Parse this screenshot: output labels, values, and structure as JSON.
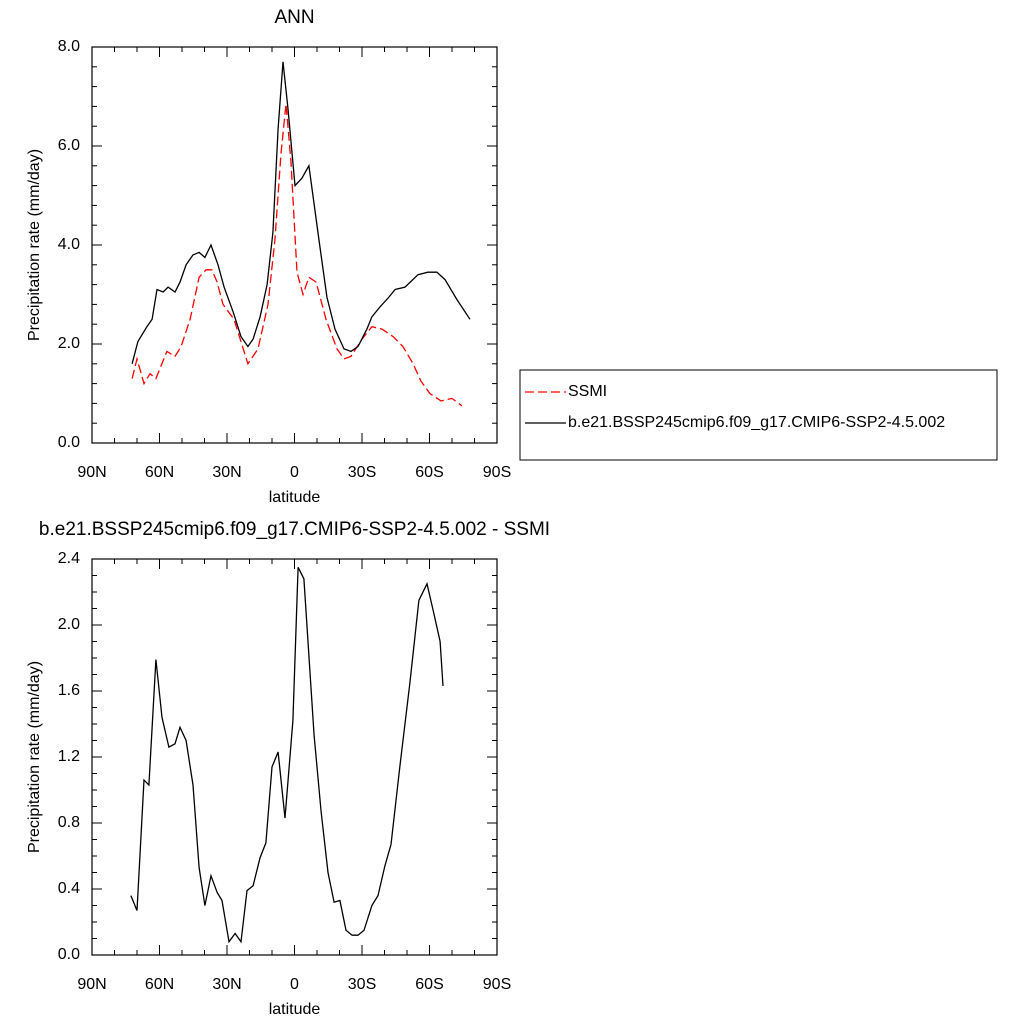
{
  "chart_data": [
    {
      "type": "line",
      "title": "ANN",
      "xlabel": "latitude",
      "ylabel": "Precipitation rate (mm/day)",
      "xlim": [
        90,
        -90
      ],
      "ylim": [
        0,
        8
      ],
      "xticks": [
        {
          "value": 90,
          "label": "90N"
        },
        {
          "value": 60,
          "label": "60N"
        },
        {
          "value": 30,
          "label": "30N"
        },
        0,
        {
          "value": -30,
          "label": "30S"
        },
        {
          "value": -60,
          "label": "60S"
        },
        {
          "value": -90,
          "label": "90S"
        }
      ],
      "yticks": [
        {
          "value": 0,
          "label": "0.0"
        },
        {
          "value": 2,
          "label": "2.0"
        },
        {
          "value": 4,
          "label": "4.0"
        },
        {
          "value": 6,
          "label": "6.0"
        },
        {
          "value": 8,
          "label": "8.0"
        }
      ],
      "legend": "right",
      "series": [
        {
          "name": "SSMI",
          "color": "#ff0000",
          "line_style": "dashed",
          "x": [
            72.2,
            70,
            66.9,
            64.2,
            61.6,
            56.7,
            53.1,
            50.4,
            46.4,
            42.4,
            39.3,
            36.7,
            34.4,
            31.8,
            26.9,
            20.7,
            16.2,
            11.8,
            8.7,
            6,
            3.8,
            1.6,
            -1.1,
            -3.8,
            -6.4,
            -9.6,
            -14,
            -18.9,
            -22,
            -25.1,
            -30,
            -34.4,
            -38.9,
            -43.8,
            -48.2,
            -52.7,
            -56.2,
            -60.2,
            -65.1,
            -70,
            -74.4
          ],
          "values": [
            1.3,
            1.7,
            1.2,
            1.4,
            1.3,
            1.85,
            1.75,
            1.95,
            2.5,
            3.35,
            3.5,
            3.5,
            3.25,
            2.8,
            2.5,
            1.6,
            1.9,
            2.8,
            4.1,
            5.85,
            6.85,
            5.7,
            3.45,
            3.0,
            3.35,
            3.25,
            2.5,
            1.9,
            1.7,
            1.75,
            2.1,
            2.35,
            2.3,
            2.15,
            1.95,
            1.6,
            1.25,
            1.0,
            0.85,
            0.9,
            0.75
          ]
        },
        {
          "name": "b.e21.BSSP245cmip6.f09_g17.CMIP6-SSP2-4.5.002",
          "color": "#000000",
          "line_style": "solid",
          "x": [
            72.2,
            69.6,
            65.6,
            63.3,
            61.1,
            58.4,
            56.2,
            53.1,
            50.9,
            48.2,
            45.1,
            42.4,
            39.8,
            37.1,
            34,
            31.3,
            27.3,
            23.8,
            20.7,
            18.4,
            15.3,
            12.2,
            9.6,
            7.3,
            5.1,
            2.9,
            -0.2,
            -3.3,
            -6.4,
            -10.9,
            -14.4,
            -18,
            -22,
            -25.1,
            -28.2,
            -32.2,
            -34.4,
            -38,
            -42,
            -44.7,
            -49.1,
            -54.9,
            -59.3,
            -63.3,
            -66.9,
            -72.2,
            -78
          ],
          "values": [
            1.6,
            2.05,
            2.35,
            2.5,
            3.1,
            3.05,
            3.15,
            3.05,
            3.25,
            3.6,
            3.8,
            3.85,
            3.75,
            4.0,
            3.6,
            3.15,
            2.65,
            2.15,
            1.95,
            2.1,
            2.55,
            3.2,
            4.25,
            6.35,
            7.7,
            6.75,
            5.2,
            5.35,
            5.6,
            4.1,
            2.95,
            2.3,
            1.9,
            1.85,
            1.95,
            2.3,
            2.55,
            2.75,
            2.95,
            3.1,
            3.15,
            3.4,
            3.45,
            3.45,
            3.3,
            2.9,
            2.5
          ]
        }
      ]
    },
    {
      "type": "line",
      "title": "b.e21.BSSP245cmip6.f09_g17.CMIP6-SSP2-4.5.002 - SSMI",
      "xlabel": "latitude",
      "ylabel": "Precipitation rate (mm/day)",
      "xlim": [
        90,
        -90
      ],
      "ylim": [
        0,
        2.4
      ],
      "xticks": [
        {
          "value": 90,
          "label": "90N"
        },
        {
          "value": 60,
          "label": "60N"
        },
        {
          "value": 30,
          "label": "30N"
        },
        0,
        {
          "value": -30,
          "label": "30S"
        },
        {
          "value": -60,
          "label": "60S"
        },
        {
          "value": -90,
          "label": "90S"
        }
      ],
      "yticks": [
        {
          "value": 0,
          "label": "0.0"
        },
        0.4,
        0.8,
        1.2,
        1.6,
        {
          "value": 2,
          "label": "2.0"
        },
        2.4
      ],
      "series": [
        {
          "color": "#000000",
          "line_style": "solid",
          "x": [
            72.7,
            70,
            66.9,
            64.7,
            61.6,
            58.9,
            55.8,
            53.1,
            50.9,
            48.2,
            45.1,
            42.4,
            39.8,
            37.1,
            34.4,
            32.2,
            29.1,
            26.4,
            23.8,
            21.1,
            18.4,
            15.3,
            12.7,
            10,
            7.3,
            4.2,
            0.7,
            -1.6,
            -4.2,
            -8.7,
            -11.8,
            -14.9,
            -17.6,
            -20.2,
            -22.9,
            -25.6,
            -28.2,
            -30.9,
            -34.4,
            -37.1,
            -40.2,
            -42.9,
            -46.9,
            -51.3,
            -55.3,
            -58.9,
            -61.6,
            -64.7,
            -66
          ],
          "values": [
            0.36,
            0.27,
            1.06,
            1.03,
            1.79,
            1.44,
            1.26,
            1.28,
            1.38,
            1.3,
            1.03,
            0.53,
            0.3,
            0.48,
            0.38,
            0.33,
            0.08,
            0.13,
            0.08,
            0.39,
            0.42,
            0.59,
            0.68,
            1.14,
            1.23,
            0.83,
            1.42,
            2.35,
            2.28,
            1.33,
            0.87,
            0.5,
            0.32,
            0.33,
            0.15,
            0.12,
            0.12,
            0.15,
            0.3,
            0.36,
            0.54,
            0.67,
            1.15,
            1.65,
            2.15,
            2.25,
            2.09,
            1.9,
            1.63
          ]
        }
      ]
    }
  ]
}
